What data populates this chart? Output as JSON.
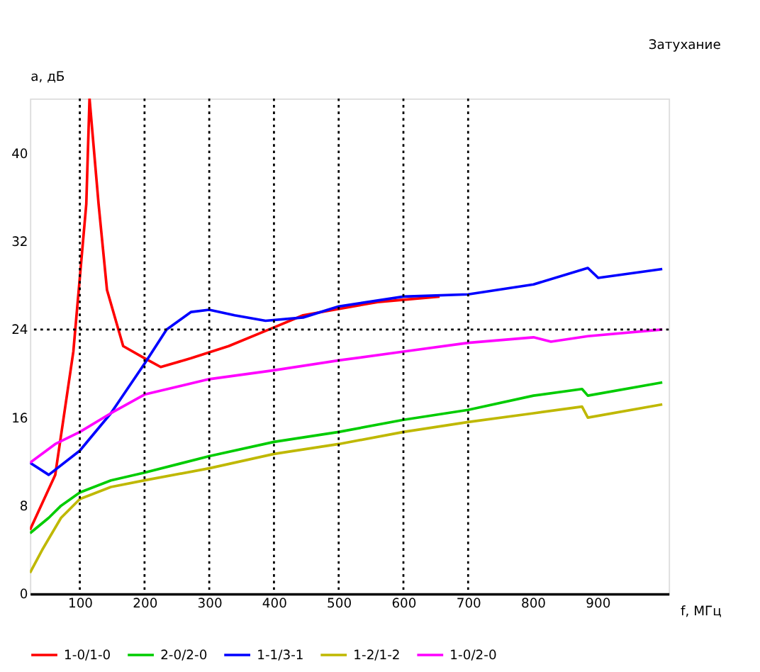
{
  "chart_data": {
    "type": "line",
    "title": "Затухание",
    "xlabel": "f, МГц",
    "ylabel": "a, дБ",
    "xlim": [
      23,
      1010
    ],
    "ylim": [
      0,
      45
    ],
    "xticks": [
      100,
      200,
      300,
      400,
      500,
      600,
      700,
      800,
      900
    ],
    "yticks": [
      0,
      8,
      16,
      24,
      32,
      40
    ],
    "grid": false,
    "legend": "bottom",
    "marker": "none",
    "line_style": "solid",
    "ref_lines": [
      {
        "axis": "x",
        "value": 100,
        "line_style": "dotted",
        "color": "#000000"
      },
      {
        "axis": "x",
        "value": 200,
        "line_style": "dotted",
        "color": "#000000"
      },
      {
        "axis": "x",
        "value": 300,
        "line_style": "dotted",
        "color": "#000000"
      },
      {
        "axis": "x",
        "value": 400,
        "line_style": "dotted",
        "color": "#000000"
      },
      {
        "axis": "x",
        "value": 500,
        "line_style": "dotted",
        "color": "#000000"
      },
      {
        "axis": "x",
        "value": 600,
        "line_style": "dotted",
        "color": "#000000"
      },
      {
        "axis": "x",
        "value": 700,
        "line_style": "dotted",
        "color": "#000000"
      },
      {
        "axis": "y",
        "value": 24,
        "line_style": "dotted",
        "color": "#000000"
      }
    ],
    "series": [
      {
        "name": "1-0/1-0",
        "color": "#ff0000",
        "x": [
          23,
          62,
          90,
          110,
          115,
          129,
          142,
          167,
          200,
          225,
          272,
          330,
          400,
          445,
          560,
          656
        ],
        "values": [
          5.8,
          10.8,
          22,
          35.4,
          45,
          35.4,
          27.6,
          22.5,
          21.4,
          20.6,
          21.4,
          22.5,
          24.2,
          25.3,
          26.5,
          27
        ]
      },
      {
        "name": "2-0/2-0",
        "color": "#00cc00",
        "x": [
          23,
          52,
          71,
          100,
          148,
          200,
          300,
          400,
          500,
          600,
          700,
          801,
          876,
          885,
          1000
        ],
        "values": [
          5.5,
          6.9,
          8,
          9.2,
          10.3,
          11,
          12.5,
          13.8,
          14.7,
          15.8,
          16.7,
          18,
          18.6,
          18,
          19.2
        ]
      },
      {
        "name": "1-1/3-1",
        "color": "#0000ff",
        "x": [
          23,
          52,
          100,
          148,
          200,
          234,
          272,
          300,
          339,
          387,
          445,
          500,
          600,
          700,
          801,
          885,
          901,
          1000
        ],
        "values": [
          11.9,
          10.8,
          13,
          16.4,
          20.9,
          24,
          25.6,
          25.8,
          25.3,
          24.8,
          25.1,
          26.1,
          27,
          27.2,
          28.1,
          29.6,
          28.7,
          29.5
        ]
      },
      {
        "name": "1-2/1-2",
        "color": "#bfb800",
        "x": [
          23,
          43,
          71,
          100,
          148,
          200,
          300,
          400,
          500,
          600,
          700,
          801,
          876,
          885,
          1000
        ],
        "values": [
          1.9,
          4.1,
          6.9,
          8.6,
          9.7,
          10.3,
          11.4,
          12.7,
          13.6,
          14.7,
          15.6,
          16.4,
          17,
          16,
          17.2
        ]
      },
      {
        "name": "1-0/2-0",
        "color": "#ff00ff",
        "x": [
          23,
          62,
          100,
          148,
          200,
          300,
          400,
          500,
          600,
          700,
          801,
          828,
          885,
          1000
        ],
        "values": [
          11.9,
          13.6,
          14.7,
          16.4,
          18.1,
          19.5,
          20.3,
          21.2,
          22,
          22.8,
          23.3,
          22.9,
          23.4,
          24
        ]
      }
    ]
  }
}
